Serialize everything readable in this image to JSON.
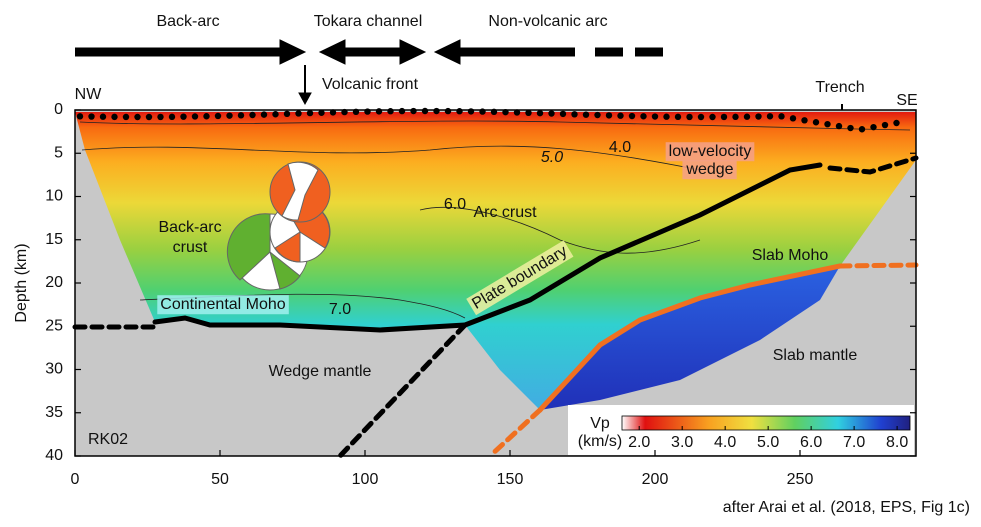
{
  "chart_data": {
    "type": "cross-section",
    "ylabel": "Depth (km)",
    "xlim": [
      0,
      290
    ],
    "ylim": [
      0,
      40
    ],
    "y_inverted": true,
    "xticks": [
      0,
      50,
      100,
      150,
      200,
      250
    ],
    "yticks": [
      0,
      5,
      10,
      15,
      20,
      25,
      30,
      35,
      40
    ],
    "annotations": [
      "Back-arc",
      "Tokara channel",
      "Non-volcanic arc",
      "Volcanic front",
      "NW",
      "SE",
      "Trench",
      "low-velocity",
      "wedge",
      "5.0",
      "4.0",
      "6.0",
      "Arc crust",
      "Back-arc",
      "crust",
      "Continental Moho",
      "7.0",
      "Plate boundary",
      "Slab Moho",
      "Wedge mantle",
      "Slab mantle",
      "RK02"
    ],
    "colorbar": {
      "label": "Vp",
      "unit": "(km/s)",
      "lim": [
        1.6,
        8.3
      ],
      "ticks": [
        {
          "value": 2,
          "label": "2.0"
        },
        {
          "value": 3,
          "label": "3.0"
        },
        {
          "value": 4,
          "label": "4.0"
        },
        {
          "value": 5,
          "label": "5.0"
        },
        {
          "value": 6,
          "label": "6.0"
        },
        {
          "value": 7,
          "label": "7.0"
        },
        {
          "value": 8,
          "label": "8.0"
        }
      ]
    },
    "credit": "after Arai et al. (2018, EPS, Fig 1c)"
  }
}
